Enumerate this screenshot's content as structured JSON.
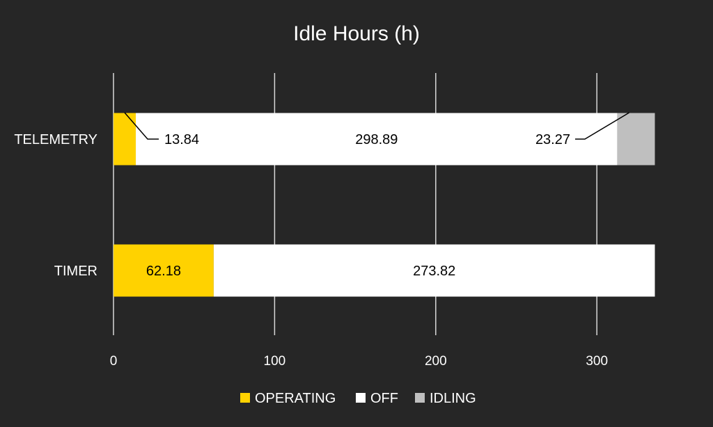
{
  "chart_data": {
    "type": "bar",
    "orientation": "horizontal",
    "stacked": true,
    "title": "Idle Hours (h)",
    "categories": [
      "TELEMETRY",
      "TIMER"
    ],
    "series": [
      {
        "name": "OPERATING",
        "values": [
          13.84,
          62.18
        ],
        "labels": [
          "13.84",
          "62.18"
        ],
        "color": "#ffd200"
      },
      {
        "name": "OFF",
        "values": [
          298.89,
          273.82
        ],
        "labels": [
          "298.89",
          "273.82"
        ],
        "color": "#ffffff"
      },
      {
        "name": "IDLING",
        "values": [
          23.27,
          0
        ],
        "labels": [
          "23.27",
          ""
        ],
        "color": "#bfbfbf"
      }
    ],
    "xlim": [
      0,
      336
    ],
    "xticks": [
      0,
      100,
      200,
      300
    ],
    "grid": true,
    "legend_position": "bottom",
    "colors": {
      "background": "#262626",
      "text": "#ffffff",
      "gridline": "#d9d9d9",
      "label_dark": "#000000"
    }
  }
}
